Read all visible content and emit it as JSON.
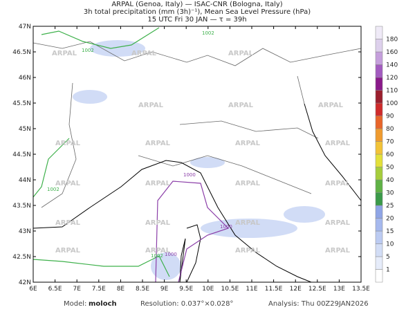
{
  "header": {
    "line1": "ARPAL (Genoa, Italy)  —  ISAC-CNR (Bologna, Italy)",
    "line2": "3h total precipitation (mm (3h)⁻¹), Mean Sea Level Pressure (hPa)",
    "line3": "15 UTC Fri 30 JAN  —  τ = 39h"
  },
  "map": {
    "lon_labels": [
      "6E",
      "6.5E",
      "7E",
      "7.5E",
      "8E",
      "8.5E",
      "9E",
      "9.5E",
      "10E",
      "10.5E",
      "11E",
      "11.5E",
      "12E",
      "12.5E",
      "13E",
      "13.5E"
    ],
    "lat_labels": [
      "47N",
      "46.5N",
      "46N",
      "45.5N",
      "45N",
      "44.5N",
      "44N",
      "43.5N",
      "43N",
      "42.5N",
      "42N"
    ],
    "watermark": "ARPAL",
    "isobar_labels": [
      "1002",
      "1002",
      "1002",
      "1000",
      "1000",
      "1000",
      "1002"
    ]
  },
  "colorbar": {
    "labels": [
      1,
      5,
      10,
      15,
      20,
      25,
      30,
      40,
      50,
      60,
      70,
      80,
      90,
      100,
      110,
      120,
      140,
      160,
      180
    ],
    "colors": [
      "#ffffff",
      "#e6ecfa",
      "#d2ddf6",
      "#bccbf2",
      "#a6b9ee",
      "#8fa5e6",
      "#3b9a4a",
      "#5fb246",
      "#a6cd3c",
      "#e3e03a",
      "#f2c338",
      "#ef9b2f",
      "#e8652a",
      "#cf2b2b",
      "#9b1f2e",
      "#8a1a8a",
      "#a35bc0",
      "#c59fdc",
      "#ddd0ec",
      "#efeaf7"
    ]
  },
  "footer": {
    "model_label": "Model:",
    "model": "moloch",
    "resolution": "Resolution: 0.037°×0.028°",
    "analysis": "Analysis: Thu 00Z29JAN2026"
  }
}
